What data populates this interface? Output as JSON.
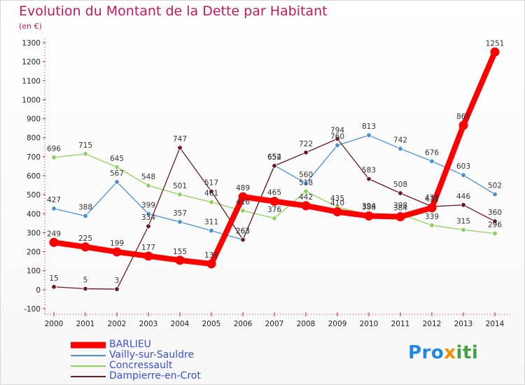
{
  "header": {
    "title": "Evolution du Montant de la Dette par Habitant",
    "unit": "(en €)"
  },
  "logo": {
    "part1": "Pro",
    "part2": "x",
    "part3": "iti"
  },
  "chart_data": {
    "type": "line",
    "title": "Evolution du Montant de la Dette par Habitant",
    "ylabel": "(en €)",
    "xlabel": "",
    "x": [
      2000,
      2001,
      2002,
      2003,
      2004,
      2005,
      2006,
      2007,
      2008,
      2009,
      2010,
      2011,
      2012,
      2013,
      2014
    ],
    "ylim": [
      -100,
      1300
    ],
    "yticks": [
      -100,
      0,
      100,
      200,
      300,
      400,
      500,
      600,
      700,
      800,
      900,
      1000,
      1100,
      1200,
      1300
    ],
    "grid": false,
    "legend_position": "bottom-left",
    "series": [
      {
        "name": "BARLIEU",
        "color": "#ff0000",
        "values": [
          249,
          225,
          199,
          177,
          155,
          136,
          489,
          465,
          442,
          410,
          388,
          384,
          431,
          865,
          1251
        ]
      },
      {
        "name": "Vailly-sur-Sauldre",
        "color": "#4b8fd1",
        "values": [
          427,
          388,
          567,
          399,
          357,
          311,
          263,
          654,
          560,
          760,
          813,
          742,
          676,
          603,
          502
        ]
      },
      {
        "name": "Concressault",
        "color": "#8fd15b",
        "values": [
          696,
          715,
          645,
          548,
          501,
          461,
          416,
          376,
          518,
          435,
          394,
          398,
          339,
          315,
          296
        ]
      },
      {
        "name": "Dampierre-en-Crot",
        "color": "#6b1a22",
        "values": [
          15,
          5,
          3,
          334,
          747,
          517,
          263,
          652,
          722,
          794,
          583,
          508,
          438,
          446,
          360
        ]
      }
    ]
  }
}
